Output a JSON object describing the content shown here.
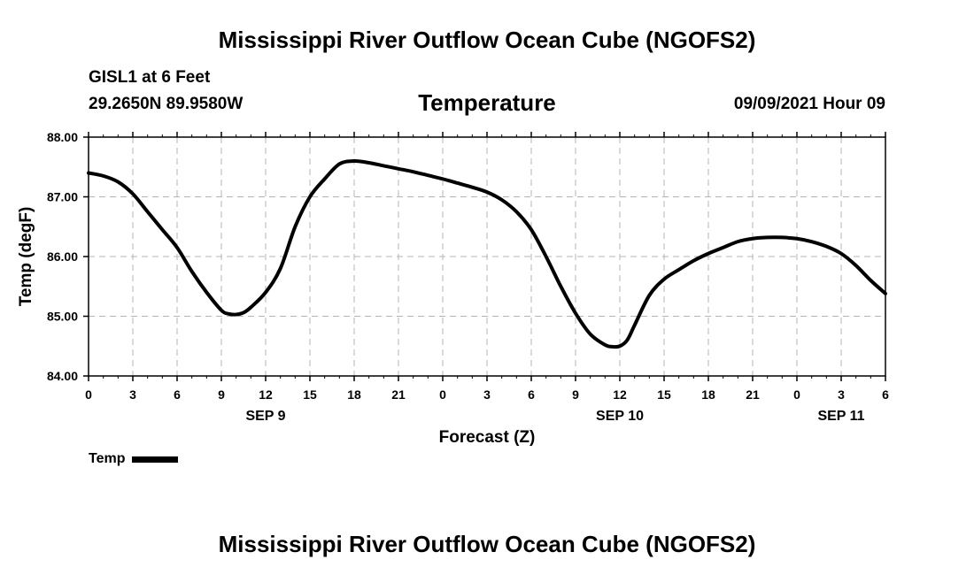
{
  "page": {
    "title_top": "Mississippi River Outflow Ocean Cube (NGOFS2)",
    "title_bottom": "Mississippi River Outflow Ocean Cube (NGOFS2)",
    "station_name": "GISL1 at 6 Feet",
    "station_coords": "29.2650N  89.9580W",
    "variable_title": "Temperature",
    "datetime": "09/09/2021 Hour 09"
  },
  "chart_data": {
    "type": "line",
    "title": "Temperature",
    "xlabel": "Forecast (Z)",
    "ylabel": "Temp (degF)",
    "ylim": [
      84.0,
      88.0
    ],
    "yticks": [
      84.0,
      85.0,
      86.0,
      87.0,
      88.0
    ],
    "ytick_labels": [
      "84.00",
      "85.00",
      "86.00",
      "87.00",
      "88.00"
    ],
    "xlim": [
      0,
      54
    ],
    "xticks": [
      0,
      3,
      6,
      9,
      12,
      15,
      18,
      21,
      24,
      27,
      30,
      33,
      36,
      39,
      42,
      45,
      48,
      51,
      54
    ],
    "xtick_labels": [
      "0",
      "3",
      "6",
      "9",
      "12",
      "15",
      "18",
      "21",
      "0",
      "3",
      "6",
      "9",
      "12",
      "15",
      "18",
      "21",
      "0",
      "3",
      "6"
    ],
    "date_labels": [
      {
        "x": 12,
        "label": "SEP 9"
      },
      {
        "x": 36,
        "label": "SEP 10"
      },
      {
        "x": 51,
        "label": "SEP 11"
      }
    ],
    "grid": true,
    "legend": [
      {
        "name": "Temp",
        "color": "#000000"
      }
    ],
    "series": [
      {
        "name": "Temp",
        "color": "#000000",
        "x": [
          0,
          1,
          2,
          3,
          4,
          5,
          6,
          7,
          8,
          9,
          9.5,
          10,
          10.5,
          11,
          12,
          13,
          14,
          15,
          16,
          17,
          18,
          19,
          20,
          21,
          22,
          23,
          24,
          25,
          26,
          27,
          28,
          29,
          30,
          31,
          32,
          33,
          34,
          35,
          35.5,
          36,
          36.5,
          37,
          38,
          39,
          40,
          41,
          42,
          43,
          44,
          45,
          46,
          47,
          48,
          49,
          50,
          51,
          52,
          53,
          54
        ],
        "y": [
          87.4,
          87.35,
          87.25,
          87.05,
          86.75,
          86.45,
          86.15,
          85.75,
          85.4,
          85.1,
          85.04,
          85.03,
          85.06,
          85.15,
          85.4,
          85.8,
          86.5,
          87.0,
          87.3,
          87.55,
          87.6,
          87.57,
          87.52,
          87.47,
          87.42,
          87.36,
          87.3,
          87.23,
          87.16,
          87.08,
          86.95,
          86.75,
          86.45,
          86.0,
          85.5,
          85.05,
          84.7,
          84.52,
          84.49,
          84.5,
          84.6,
          84.85,
          85.35,
          85.62,
          85.78,
          85.93,
          86.05,
          86.15,
          86.25,
          86.3,
          86.32,
          86.32,
          86.3,
          86.25,
          86.17,
          86.05,
          85.85,
          85.6,
          85.38
        ]
      }
    ]
  }
}
